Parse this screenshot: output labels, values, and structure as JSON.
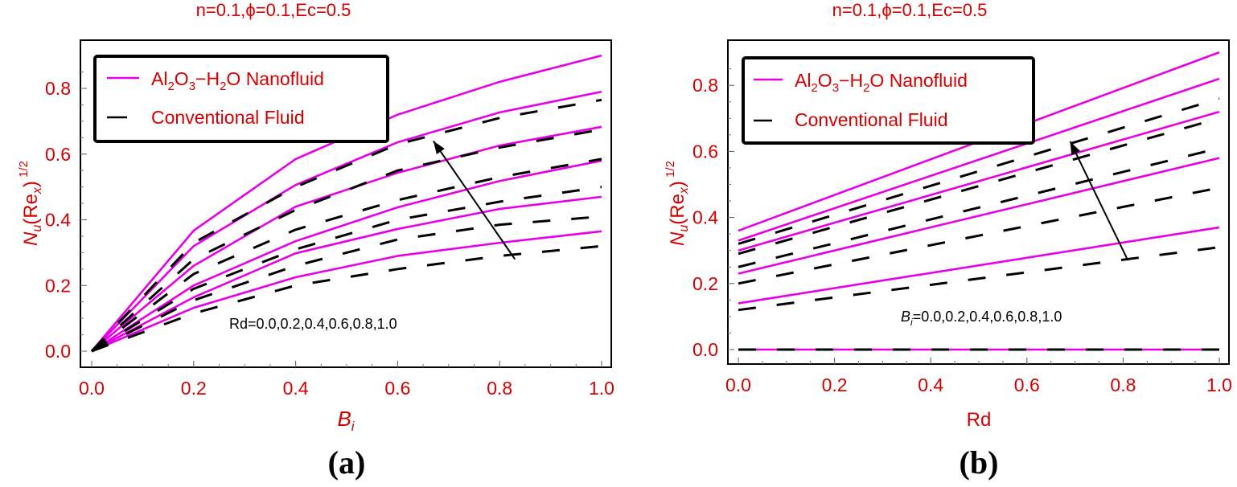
{
  "chart_data": [
    {
      "panel": "a",
      "type": "line",
      "title": "n=0.1,ϕ=0.1,Ec=0.5",
      "xlabel": "B_i",
      "ylabel": "N_u(Re_x)^1/2",
      "caption": "(a)",
      "xlim": [
        0.0,
        1.0
      ],
      "ylim": [
        -0.02,
        0.92
      ],
      "xticks": [
        "0.0",
        "0.2",
        "0.4",
        "0.6",
        "0.8",
        "1.0"
      ],
      "yticks": [
        "0.0",
        "0.2",
        "0.4",
        "0.6",
        "0.8"
      ],
      "grid": false,
      "legend": {
        "position": "top-left",
        "entries": [
          "Al2O3-H2O Nanofluid",
          "Conventional Fluid"
        ]
      },
      "annotation": "Rd=0.0,0.2,0.4,0.6,0.8,1.0",
      "arrow": {
        "from": [
          0.83,
          0.28
        ],
        "to": [
          0.67,
          0.64
        ]
      },
      "x": [
        0.0,
        0.2,
        0.4,
        0.6,
        0.8,
        1.0
      ],
      "series": [
        {
          "name": "Nanofluid Rd=1.0",
          "style": "solid",
          "color": "#e600e6",
          "values": [
            0.0,
            0.367,
            0.585,
            0.72,
            0.82,
            0.9
          ]
        },
        {
          "name": "Nanofluid Rd=0.8",
          "style": "solid",
          "color": "#e600e6",
          "values": [
            0.0,
            0.32,
            0.506,
            0.636,
            0.727,
            0.79
          ]
        },
        {
          "name": "Nanofluid Rd=0.6",
          "style": "solid",
          "color": "#e600e6",
          "values": [
            0.0,
            0.26,
            0.44,
            0.543,
            0.626,
            0.683
          ]
        },
        {
          "name": "Nanofluid Rd=0.4",
          "style": "solid",
          "color": "#e600e6",
          "values": [
            0.0,
            0.2,
            0.335,
            0.438,
            0.518,
            0.58
          ]
        },
        {
          "name": "Nanofluid Rd=0.2",
          "style": "solid",
          "color": "#e600e6",
          "values": [
            0.0,
            0.164,
            0.298,
            0.372,
            0.433,
            0.47
          ]
        },
        {
          "name": "Nanofluid Rd=0.0",
          "style": "solid",
          "color": "#e600e6",
          "values": [
            0.0,
            0.132,
            0.225,
            0.29,
            0.33,
            0.365
          ]
        },
        {
          "name": "Conventional Rd=1.0",
          "style": "dashed",
          "color": "#000000",
          "values": [
            0.0,
            0.33,
            0.5,
            0.63,
            0.71,
            0.765
          ]
        },
        {
          "name": "Conventional Rd=0.8",
          "style": "dashed",
          "color": "#000000",
          "values": [
            0.0,
            0.28,
            0.43,
            0.55,
            0.62,
            0.675
          ]
        },
        {
          "name": "Conventional Rd=0.6",
          "style": "dashed",
          "color": "#000000",
          "values": [
            0.0,
            0.235,
            0.37,
            0.46,
            0.53,
            0.585
          ]
        },
        {
          "name": "Conventional Rd=0.4",
          "style": "dashed",
          "color": "#000000",
          "values": [
            0.0,
            0.19,
            0.31,
            0.4,
            0.455,
            0.5
          ]
        },
        {
          "name": "Conventional Rd=0.2",
          "style": "dashed",
          "color": "#000000",
          "values": [
            0.0,
            0.155,
            0.26,
            0.34,
            0.385,
            0.41
          ]
        },
        {
          "name": "Conventional Rd=0.0",
          "style": "dashed",
          "color": "#000000",
          "values": [
            0.0,
            0.115,
            0.2,
            0.25,
            0.29,
            0.32
          ]
        }
      ]
    },
    {
      "panel": "b",
      "type": "line",
      "title": "n=0.1,ϕ=0.1,Ec=0.5",
      "xlabel": "Rd",
      "ylabel": "N_u(Re_x)^1/2",
      "caption": "(b)",
      "xlim": [
        0.0,
        1.0
      ],
      "ylim": [
        -0.04,
        0.92
      ],
      "xticks": [
        "0.0",
        "0.2",
        "0.4",
        "0.6",
        "0.8",
        "1.0"
      ],
      "yticks": [
        "0.0",
        "0.2",
        "0.4",
        "0.6",
        "0.8"
      ],
      "grid": false,
      "legend": {
        "position": "top-left",
        "entries": [
          "Al2O3-H2O Nanofluid",
          "Conventional Fluid"
        ]
      },
      "annotation": "B_i=0.0,0.2,0.4,0.6,0.8,1.0",
      "arrow": {
        "from": [
          0.81,
          0.27
        ],
        "to": [
          0.69,
          0.63
        ]
      },
      "x": [
        0.0,
        1.0
      ],
      "series": [
        {
          "name": "Nanofluid Bi=1.0",
          "style": "solid",
          "color": "#e600e6",
          "values": [
            0.36,
            0.9
          ]
        },
        {
          "name": "Nanofluid Bi=0.8",
          "style": "solid",
          "color": "#e600e6",
          "values": [
            0.33,
            0.82
          ]
        },
        {
          "name": "Nanofluid Bi=0.6",
          "style": "solid",
          "color": "#e600e6",
          "values": [
            0.3,
            0.72
          ]
        },
        {
          "name": "Nanofluid Bi=0.4",
          "style": "solid",
          "color": "#e600e6",
          "values": [
            0.23,
            0.58
          ]
        },
        {
          "name": "Nanofluid Bi=0.2",
          "style": "solid",
          "color": "#e600e6",
          "values": [
            0.14,
            0.37
          ]
        },
        {
          "name": "Nanofluid Bi=0.0",
          "style": "solid",
          "color": "#e600e6",
          "values": [
            0.0,
            0.0
          ]
        },
        {
          "name": "Conventional Bi=1.0",
          "style": "dashed",
          "color": "#000000",
          "values": [
            0.32,
            0.76
          ]
        },
        {
          "name": "Conventional Bi=0.8",
          "style": "dashed",
          "color": "#000000",
          "values": [
            0.29,
            0.7
          ]
        },
        {
          "name": "Conventional Bi=0.6",
          "style": "dashed",
          "color": "#000000",
          "values": [
            0.25,
            0.61
          ]
        },
        {
          "name": "Conventional Bi=0.4",
          "style": "dashed",
          "color": "#000000",
          "values": [
            0.2,
            0.49
          ]
        },
        {
          "name": "Conventional Bi=0.2",
          "style": "dashed",
          "color": "#000000",
          "values": [
            0.12,
            0.31
          ]
        },
        {
          "name": "Conventional Bi=0.0",
          "style": "dashed",
          "color": "#000000",
          "values": [
            0.0,
            0.0
          ]
        }
      ]
    }
  ],
  "colors": {
    "label_red": "#d40000",
    "nanofluid": "#e600e6",
    "conventional": "#000000"
  },
  "legend_labels": {
    "conventional": "Conventional Fluid"
  },
  "captions": {
    "a": "(a)",
    "b": "(b)"
  },
  "titles": {
    "a": "n=0.1,ϕ=0.1,Ec=0.5",
    "b": "n=0.1,ϕ=0.1,Ec=0.5"
  },
  "annotations": {
    "a": "Rd=0.0,0.2,0.4,0.6,0.8,1.0",
    "b_values": "=0.0,0.2,0.4,0.6,0.8,1.0"
  },
  "axis_labels": {
    "a_x": "B",
    "a_x_sub": "i",
    "b_x": "Rd",
    "y_main": "N",
    "y_sub_u": "u",
    "y_re": "(Re",
    "y_sub_x": "x",
    "y_close": ")",
    "y_sup": "1/2"
  }
}
